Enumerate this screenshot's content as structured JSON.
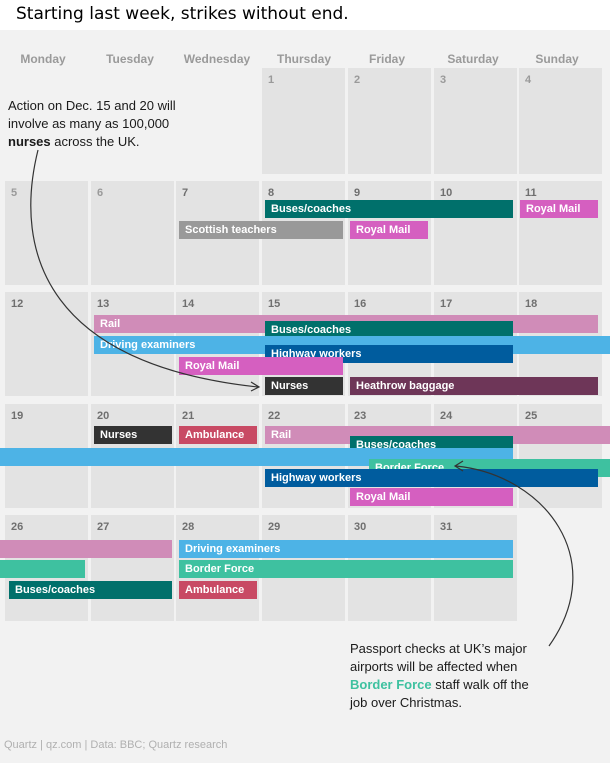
{
  "title": "Starting last week, strikes without end.",
  "days_of_week": [
    "Monday",
    "Tuesday",
    "Wednesday",
    "Thursday",
    "Friday",
    "Saturday",
    "Sunday"
  ],
  "dates": {
    "d1": "1",
    "d2": "2",
    "d3": "3",
    "d4": "4",
    "d5": "5",
    "d6": "6",
    "d7": "7",
    "d8": "8",
    "d9": "9",
    "d10": "10",
    "d11": "11",
    "d12": "12",
    "d13": "13",
    "d14": "14",
    "d15": "15",
    "d16": "16",
    "d17": "17",
    "d18": "18",
    "d19": "19",
    "d20": "20",
    "d21": "21",
    "d22": "22",
    "d23": "23",
    "d24": "24",
    "d25": "25",
    "d26": "26",
    "d27": "27",
    "d28": "28",
    "d29": "29",
    "d30": "30",
    "d31": "31"
  },
  "strikes": {
    "buses_coaches": "Buses/coaches",
    "scottish_teachers": "Scottish teachers",
    "royal_mail": "Royal Mail",
    "rail": "Rail",
    "driving_examiners": "Driving examiners",
    "highway_workers": "Highway workers",
    "nurses": "Nurses",
    "heathrow_baggage": "Heathrow baggage",
    "ambulance": "Ambulance",
    "border_force": "Border Force"
  },
  "colors": {
    "buses_coaches": "#00706b",
    "scottish_teachers": "#999999",
    "royal_mail": "#d55fc0",
    "rail": "#d08cb8",
    "driving_examiners": "#4db3e6",
    "highway_workers": "#005c9e",
    "nurses": "#333333",
    "heathrow_baggage": "#6e3658",
    "ambulance": "#c84a64",
    "border_force": "#3ec1a0"
  },
  "annotations": {
    "nurses_note": {
      "line1": "Action on Dec. 15 and 20 will",
      "line2": "involve as many as 100,000",
      "bold": "nurses",
      "rest": " across the UK."
    },
    "border_note": {
      "line1": "Passport checks at UK’s major",
      "line2": "airports will be affected when",
      "bold": "Border Force",
      "rest": " staff walk off the",
      "line4": "job over Christmas."
    }
  },
  "source": "Quartz | qz.com | Data: BBC; Quartz research"
}
